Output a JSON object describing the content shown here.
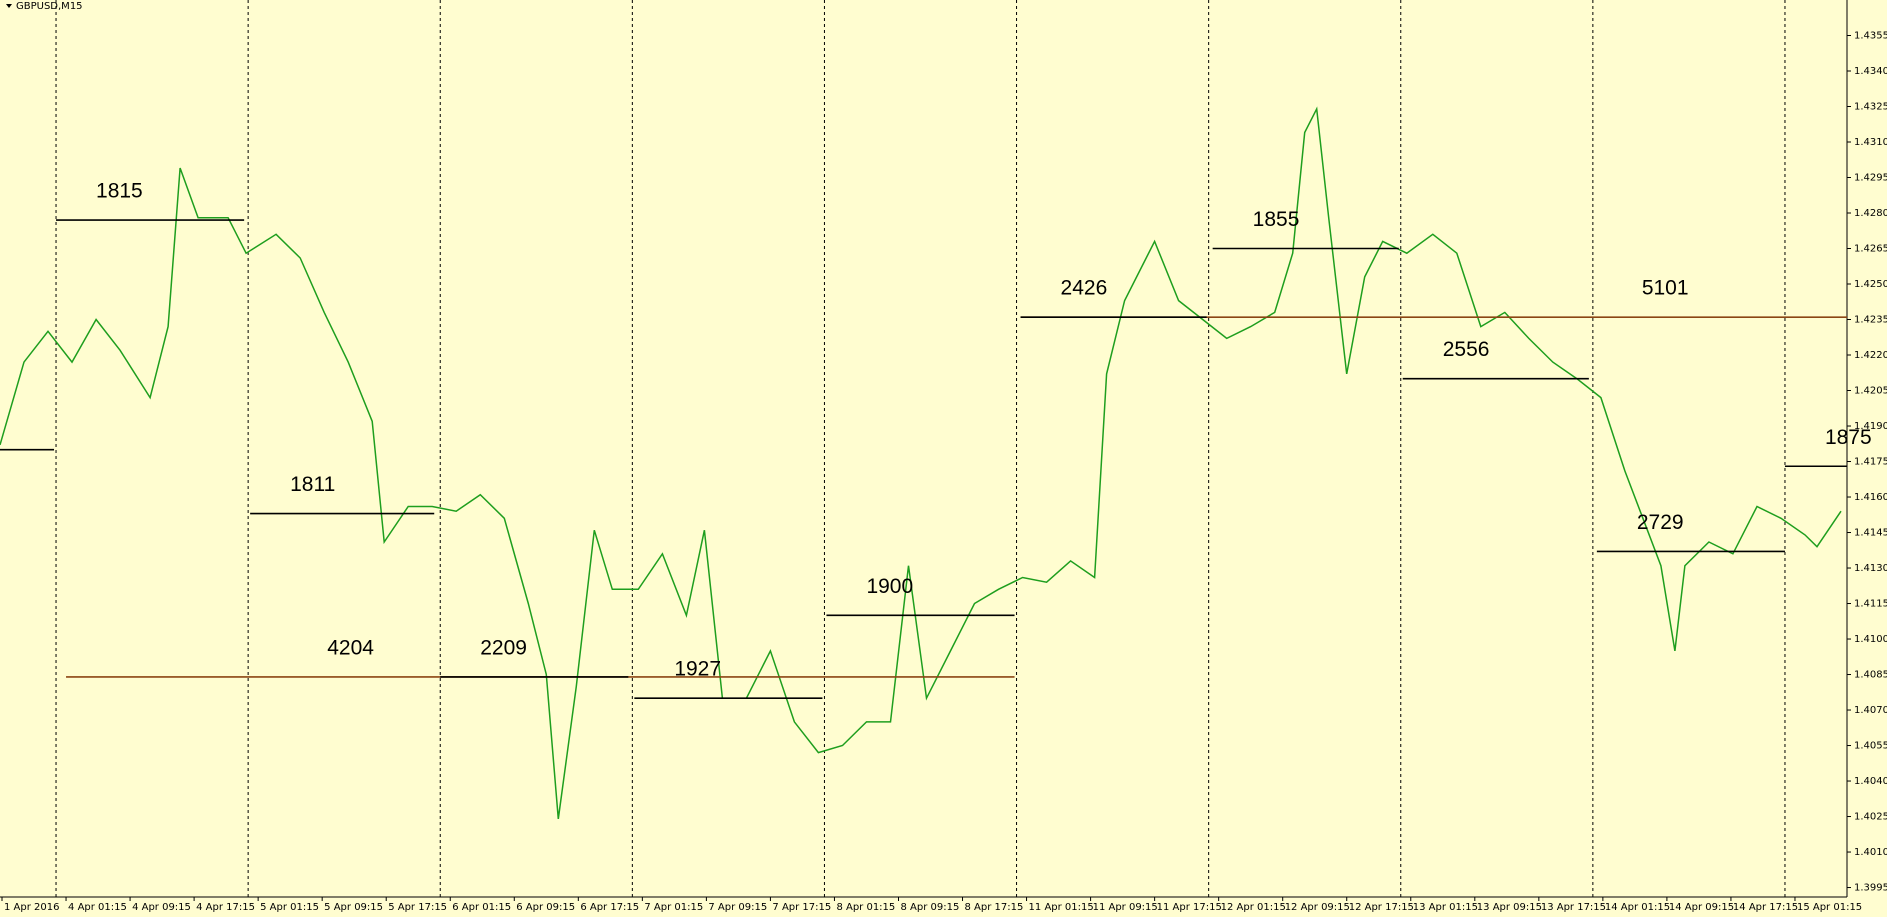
{
  "chart_data": {
    "type": "line",
    "title": "GBPUSD,M15",
    "color": "#1e9e1e",
    "x": [
      -28,
      -16,
      -4,
      8,
      20,
      32,
      47,
      56,
      62,
      71,
      86,
      95,
      110,
      122,
      134,
      146,
      158,
      164,
      176,
      188,
      200,
      212,
      224,
      236,
      245,
      251,
      260,
      269,
      278,
      291,
      303,
      315,
      324,
      333,
      345,
      357,
      369,
      381,
      393,
      405,
      417,
      426,
      435,
      447,
      459,
      471,
      483,
      495,
      507,
      519,
      525,
      534,
      549,
      561,
      573,
      585,
      597,
      609,
      618,
      624,
      630,
      636,
      645,
      654,
      663,
      675,
      688,
      700,
      712,
      724,
      736,
      748,
      760,
      772,
      784,
      793,
      802,
      809,
      814,
      826,
      838,
      850,
      862,
      874,
      880,
      892
    ],
    "values": [
      1.4182,
      1.4217,
      1.423,
      1.4217,
      1.4235,
      1.4222,
      1.4202,
      1.4232,
      1.4299,
      1.4278,
      1.4278,
      1.4263,
      1.4271,
      1.4261,
      1.4238,
      1.4217,
      1.4192,
      1.4141,
      1.4156,
      1.4156,
      1.4154,
      1.4161,
      1.4151,
      1.4115,
      1.4085,
      1.4024,
      1.408,
      1.4146,
      1.4121,
      1.4121,
      1.4136,
      1.411,
      1.4146,
      1.4075,
      1.4075,
      1.4095,
      1.4065,
      1.4052,
      1.4055,
      1.4065,
      1.4065,
      1.4131,
      1.4075,
      1.4095,
      1.4115,
      1.4121,
      1.4126,
      1.4124,
      1.4133,
      1.4126,
      1.4212,
      1.4243,
      1.4268,
      1.4243,
      1.4235,
      1.4227,
      1.4232,
      1.4238,
      1.4263,
      1.4314,
      1.4324,
      1.4278,
      1.4212,
      1.4253,
      1.4268,
      1.4263,
      1.4271,
      1.4263,
      1.4232,
      1.4238,
      1.4227,
      1.4217,
      1.421,
      1.4202,
      1.4171,
      1.4151,
      1.4131,
      1.4095,
      1.4131,
      1.4141,
      1.4136,
      1.4156,
      1.4151,
      1.4144,
      1.4139,
      1.4154
    ],
    "levels": [
      {
        "label": null,
        "start": -28,
        "end": -1,
        "price": 1.418,
        "color": "#000000"
      },
      {
        "label": "1815",
        "start": 0,
        "end": 94,
        "price": 1.4277,
        "color": "#000000"
      },
      {
        "label": "1811",
        "start": 97,
        "end": 189,
        "price": 1.4153,
        "color": "#000000"
      },
      {
        "label": "4204",
        "start": 5,
        "end": 479,
        "price": 1.4084,
        "color": "#8b4513"
      },
      {
        "label": "2209",
        "start": 192,
        "end": 286,
        "price": 1.4084,
        "color": "#000000"
      },
      {
        "label": "1927",
        "start": 289,
        "end": 383,
        "price": 1.4075,
        "color": "#000000"
      },
      {
        "label": "1900",
        "start": 385,
        "end": 479,
        "price": 1.411,
        "color": "#000000"
      },
      {
        "label": "5101",
        "start": 482,
        "end": 895,
        "price": 1.4236,
        "color": "#8b4513"
      },
      {
        "label": "2426",
        "start": 482,
        "end": 575,
        "price": 1.4236,
        "color": "#000000"
      },
      {
        "label": "1855",
        "start": 578,
        "end": 671,
        "price": 1.4265,
        "color": "#000000"
      },
      {
        "label": "2556",
        "start": 673,
        "end": 766,
        "price": 1.421,
        "color": "#000000"
      },
      {
        "label": "2729",
        "start": 770,
        "end": 864,
        "price": 1.4137,
        "color": "#000000"
      },
      {
        "label": "1875",
        "start": 864,
        "end": 895,
        "price": 1.4173,
        "color": "#000000"
      }
    ],
    "period_separators": [
      0,
      96,
      192,
      288,
      384,
      480,
      576,
      672,
      768,
      864
    ],
    "xlim": [
      -28,
      895
    ],
    "xticks": [
      {
        "value": -27,
        "label": "1 Apr 2016"
      },
      {
        "value": 5,
        "label": "4 Apr 01:15"
      },
      {
        "value": 37,
        "label": "4 Apr 09:15"
      },
      {
        "value": 69,
        "label": "4 Apr 17:15"
      },
      {
        "value": 101,
        "label": "5 Apr 01:15"
      },
      {
        "value": 133,
        "label": "5 Apr 09:15"
      },
      {
        "value": 165,
        "label": "5 Apr 17:15"
      },
      {
        "value": 197,
        "label": "6 Apr 01:15"
      },
      {
        "value": 229,
        "label": "6 Apr 09:15"
      },
      {
        "value": 261,
        "label": "6 Apr 17:15"
      },
      {
        "value": 293,
        "label": "7 Apr 01:15"
      },
      {
        "value": 325,
        "label": "7 Apr 09:15"
      },
      {
        "value": 357,
        "label": "7 Apr 17:15"
      },
      {
        "value": 389,
        "label": "8 Apr 01:15"
      },
      {
        "value": 421,
        "label": "8 Apr 09:15"
      },
      {
        "value": 453,
        "label": "8 Apr 17:15"
      },
      {
        "value": 485,
        "label": "11 Apr 01:15"
      },
      {
        "value": 517,
        "label": "11 Apr 09:15"
      },
      {
        "value": 549,
        "label": "11 Apr 17:15"
      },
      {
        "value": 581,
        "label": "12 Apr 01:15"
      },
      {
        "value": 613,
        "label": "12 Apr 09:15"
      },
      {
        "value": 645,
        "label": "12 Apr 17:15"
      },
      {
        "value": 677,
        "label": "13 Apr 01:15"
      },
      {
        "value": 709,
        "label": "13 Apr 09:15"
      },
      {
        "value": 741,
        "label": "13 Apr 17:15"
      },
      {
        "value": 773,
        "label": "14 Apr 01:15"
      },
      {
        "value": 805,
        "label": "14 Apr 09:15"
      },
      {
        "value": 837,
        "label": "14 Apr 17:15"
      },
      {
        "value": 869,
        "label": "15 Apr 01:15"
      }
    ],
    "ylim": [
      1.3991,
      1.437
    ],
    "yticks": [
      1.3995,
      {
        "value": 1.401,
        "label": "1.4010"
      },
      1.4025,
      {
        "value": 1.404,
        "label": "1.4040"
      },
      1.4055,
      {
        "value": 1.407,
        "label": "1.4070"
      },
      1.4085,
      {
        "value": 1.41,
        "label": "1.4100"
      },
      1.4115,
      {
        "value": 1.413,
        "label": "1.4130"
      },
      1.4145,
      {
        "value": 1.416,
        "label": "1.4160"
      },
      1.4175,
      {
        "value": 1.419,
        "label": "1.4190"
      },
      1.4205,
      {
        "value": 1.422,
        "label": "1.4220"
      },
      1.4235,
      {
        "value": 1.425,
        "label": "1.4250"
      },
      1.4265,
      {
        "value": 1.428,
        "label": "1.4280"
      },
      1.4295,
      {
        "value": 1.431,
        "label": "1.4310"
      },
      1.4325,
      {
        "value": 1.434,
        "label": "1.4340"
      },
      1.4355
    ]
  }
}
